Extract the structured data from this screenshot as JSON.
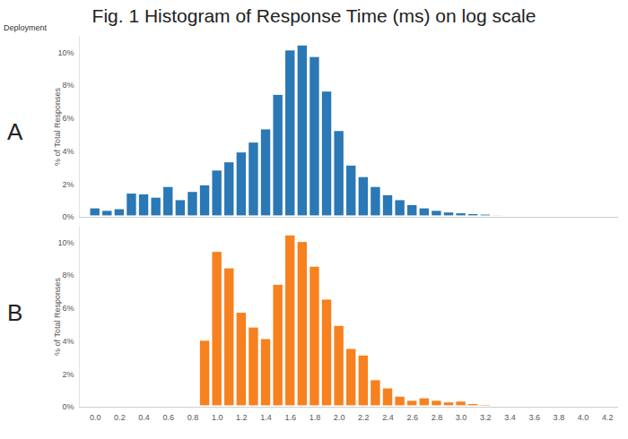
{
  "chart_data": {
    "type": "histogram",
    "title": "Fig. 1 Histogram of Response Time (ms) on log scale",
    "facet_label": "Deployment",
    "y_label": "% of Total Responses",
    "bins": [
      -0.05,
      0.05,
      0.15,
      0.25,
      0.35,
      0.45,
      0.55,
      0.65,
      0.75,
      0.85,
      0.95,
      1.05,
      1.15,
      1.25,
      1.35,
      1.45,
      1.55,
      1.65,
      1.75,
      1.85,
      1.95,
      2.05,
      2.15,
      2.25,
      2.35,
      2.45,
      2.55,
      2.65,
      2.75,
      2.85,
      2.95,
      3.05,
      3.15,
      3.25,
      3.35,
      3.45,
      3.55,
      3.65,
      3.75,
      3.85,
      3.95,
      4.05,
      4.15,
      4.25
    ],
    "xlim": [
      -0.13,
      4.29
    ],
    "xticks": [
      {
        "value": 0,
        "label": "0.0"
      },
      0.2,
      0.4,
      0.6,
      0.8,
      {
        "value": 1,
        "label": "1.0"
      },
      1.2,
      1.4,
      1.6,
      1.8,
      {
        "value": 2,
        "label": "2.0"
      },
      2.2,
      2.4,
      2.6,
      2.8,
      {
        "value": 3,
        "label": "3.0"
      },
      3.2,
      3.4,
      3.6,
      3.8,
      {
        "value": 4,
        "label": "4.0"
      },
      4.2
    ],
    "ylim": [
      0,
      11
    ],
    "yticks": [
      {
        "value": 0,
        "label": "0%"
      },
      {
        "value": 2,
        "label": "2%"
      },
      {
        "value": 4,
        "label": "4%"
      },
      {
        "value": 6,
        "label": "6%"
      },
      {
        "value": 8,
        "label": "8%"
      },
      {
        "value": 10,
        "label": "10%"
      }
    ],
    "series": [
      {
        "name": "A",
        "color": "#2a78b5",
        "values": [
          0.6,
          0.45,
          0.55,
          1.5,
          1.45,
          1.25,
          1.9,
          1.1,
          1.6,
          2.0,
          2.9,
          3.4,
          4.0,
          4.6,
          5.4,
          7.5,
          10.2,
          10.5,
          9.8,
          7.7,
          5.3,
          3.2,
          2.5,
          1.9,
          1.4,
          1.1,
          0.8,
          0.6,
          0.45,
          0.35,
          0.3,
          0.25,
          0.22,
          0.18,
          0.14,
          0.11,
          0.09,
          0.07,
          0.06,
          0.05,
          0.04,
          0.03,
          0.02
        ]
      },
      {
        "name": "B",
        "color": "#f7811f",
        "values": [
          0,
          0,
          0,
          0,
          0,
          0,
          0,
          0,
          0,
          4.1,
          9.5,
          8.5,
          5.8,
          4.9,
          4.2,
          7.5,
          10.5,
          10.1,
          8.6,
          6.6,
          5.0,
          3.6,
          3.2,
          1.7,
          1.2,
          0.7,
          0.45,
          0.6,
          0.45,
          0.35,
          0.4,
          0.25,
          0.2,
          0.15,
          0.1,
          0.08,
          0.06,
          0.04,
          0.03,
          0.03,
          0.02,
          0.01,
          0.01
        ]
      }
    ]
  }
}
